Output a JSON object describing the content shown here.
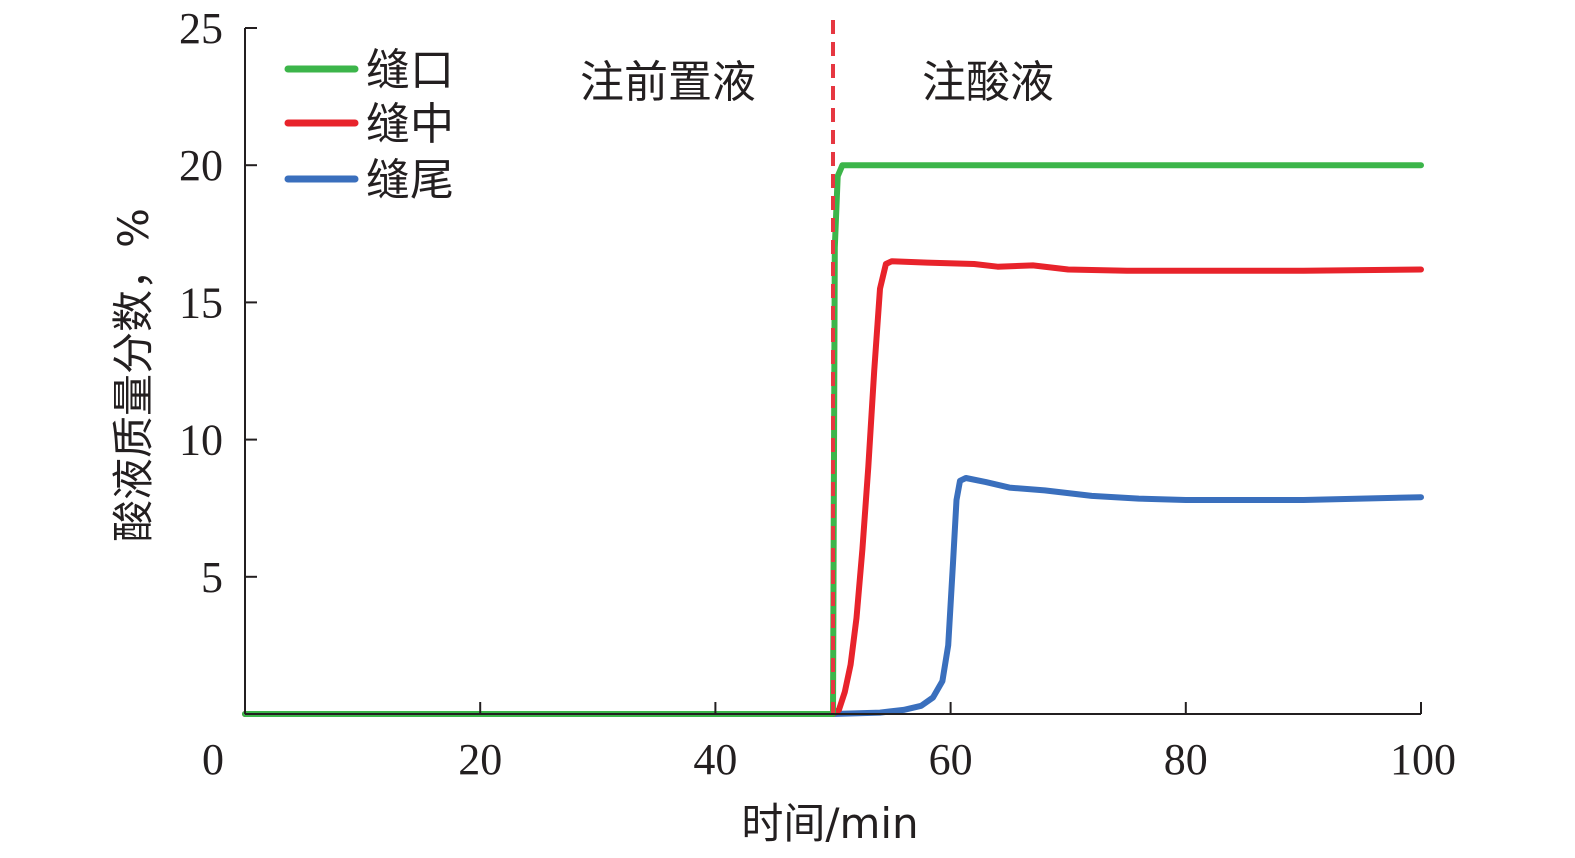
{
  "chart_data": {
    "type": "line",
    "xlabel": "时间/min",
    "ylabel": "酸液质量分数，%",
    "xlim": [
      0,
      100
    ],
    "ylim": [
      0,
      25
    ],
    "xticks": [
      0,
      20,
      40,
      60,
      80,
      100
    ],
    "yticks": [
      5,
      10,
      15,
      20,
      25
    ],
    "grid": false,
    "legend_position": "top-left",
    "divider_x": 50,
    "divider_color": "#e63741",
    "regions": [
      {
        "label": "注前置液"
      },
      {
        "label": "注酸液"
      }
    ],
    "series": [
      {
        "name": "缝口",
        "color": "#3cb54a",
        "points": [
          [
            0,
            0
          ],
          [
            50,
            0
          ],
          [
            50.15,
            17
          ],
          [
            50.4,
            19.6
          ],
          [
            50.8,
            20
          ],
          [
            55,
            20
          ],
          [
            70,
            20
          ],
          [
            85,
            20
          ],
          [
            100,
            20
          ]
        ]
      },
      {
        "name": "缝中",
        "color": "#e8232b",
        "points": [
          [
            0,
            0
          ],
          [
            50,
            0
          ],
          [
            50.5,
            0.15
          ],
          [
            51,
            0.8
          ],
          [
            51.5,
            1.8
          ],
          [
            52,
            3.5
          ],
          [
            52.5,
            6
          ],
          [
            53,
            9
          ],
          [
            53.5,
            12.5
          ],
          [
            54,
            15.5
          ],
          [
            54.5,
            16.4
          ],
          [
            55,
            16.5
          ],
          [
            58,
            16.45
          ],
          [
            62,
            16.4
          ],
          [
            64,
            16.3
          ],
          [
            67,
            16.35
          ],
          [
            70,
            16.2
          ],
          [
            75,
            16.15
          ],
          [
            80,
            16.15
          ],
          [
            90,
            16.15
          ],
          [
            100,
            16.2
          ]
        ]
      },
      {
        "name": "缝尾",
        "color": "#3a6fbd",
        "points": [
          [
            0,
            0
          ],
          [
            50,
            0
          ],
          [
            54,
            0.05
          ],
          [
            56,
            0.15
          ],
          [
            57.5,
            0.3
          ],
          [
            58.5,
            0.6
          ],
          [
            59.3,
            1.2
          ],
          [
            59.8,
            2.5
          ],
          [
            60.2,
            5.5
          ],
          [
            60.5,
            7.8
          ],
          [
            60.8,
            8.5
          ],
          [
            61.3,
            8.6
          ],
          [
            63,
            8.45
          ],
          [
            65,
            8.25
          ],
          [
            68,
            8.15
          ],
          [
            72,
            7.95
          ],
          [
            76,
            7.85
          ],
          [
            80,
            7.8
          ],
          [
            90,
            7.8
          ],
          [
            100,
            7.9
          ]
        ]
      }
    ]
  }
}
